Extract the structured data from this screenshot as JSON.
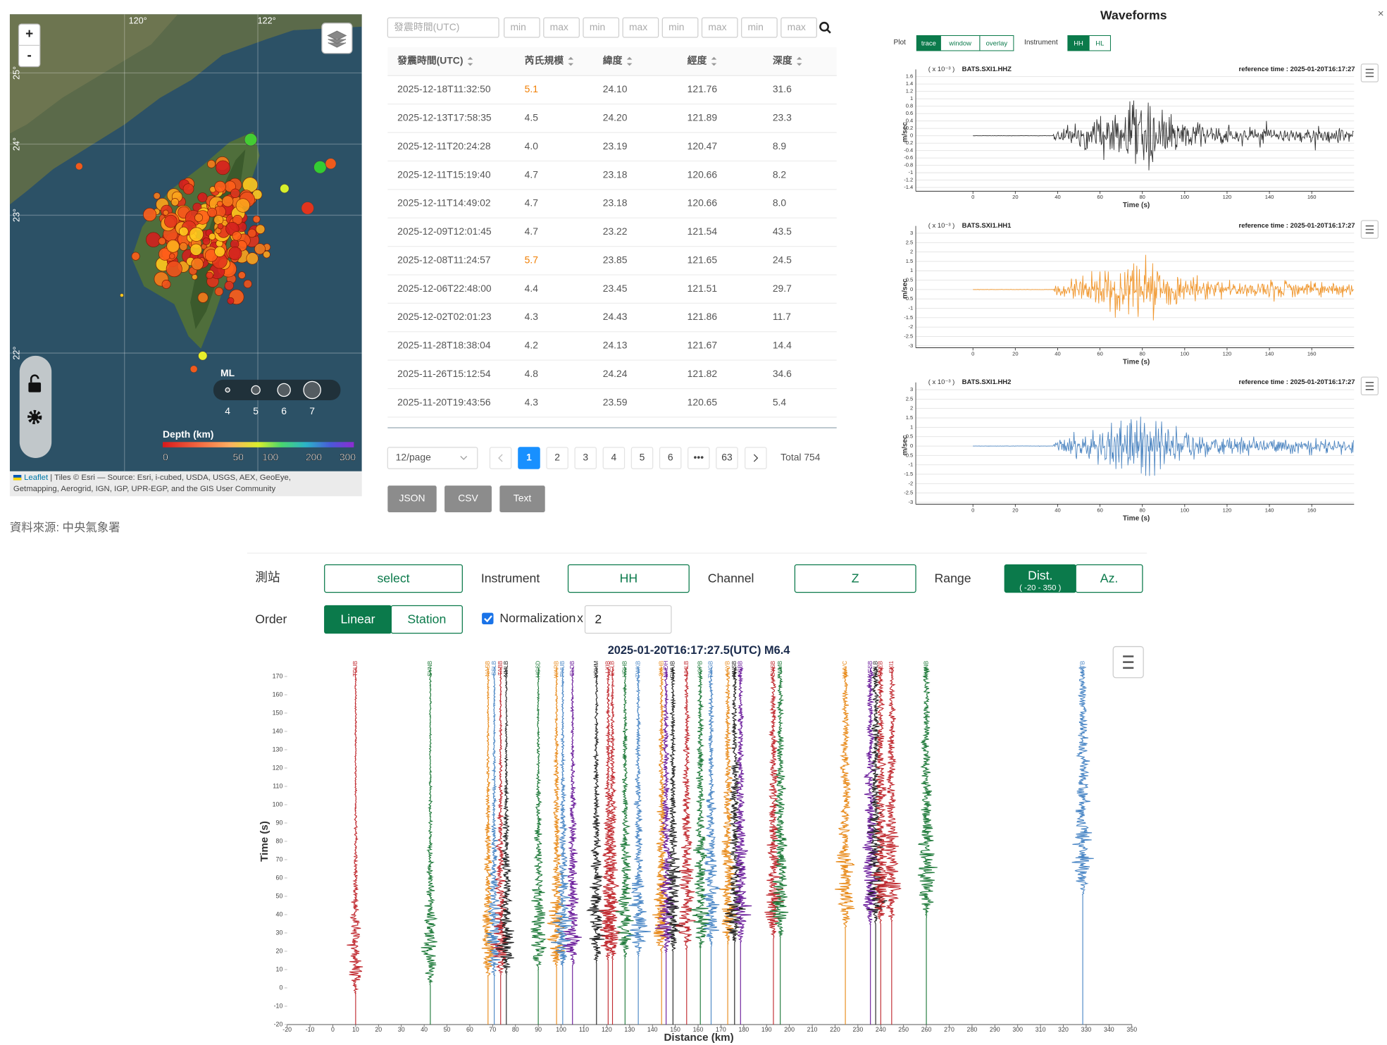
{
  "map": {
    "zoom_in": "+",
    "zoom_out": "-",
    "lon_labels": [
      "120°",
      "122°"
    ],
    "lat_labels": [
      "25°",
      "24°",
      "23°",
      "22°"
    ],
    "ml_title": "ML",
    "ml_values": [
      4,
      5,
      6,
      7
    ],
    "depth_title": "Depth (km)",
    "depth_ticks": [
      0,
      50,
      100,
      200,
      300
    ],
    "attribution_link": "Leaflet",
    "attribution": " | Tiles © Esri — Source: Esri, i-cubed, USDA, USGS, AEX, GeoEye,",
    "attribution_2": "Getmapping, Aerogrid, IGN, IGP, UPR-EGP, and the GIS User Community"
  },
  "source": "資料來源: 中央氣象署",
  "search": {
    "time_placeholder": "發震時間(UTC)",
    "range_placeholders": [
      "min",
      "max",
      "min",
      "max",
      "min",
      "max",
      "min",
      "max"
    ]
  },
  "table": {
    "columns": [
      "發震時間(UTC)",
      "芮氏規模",
      "緯度",
      "經度",
      "深度"
    ],
    "highlight_color": "#f07d00",
    "rows": [
      [
        "2025-12-18T11:32:50",
        "5.1",
        "24.10",
        "121.76",
        "31.6"
      ],
      [
        "2025-12-13T17:58:35",
        "4.5",
        "24.20",
        "121.89",
        "23.3"
      ],
      [
        "2025-12-11T20:24:28",
        "4.0",
        "23.19",
        "120.47",
        "8.9"
      ],
      [
        "2025-12-11T15:19:40",
        "4.7",
        "23.18",
        "120.66",
        "8.2"
      ],
      [
        "2025-12-11T14:49:02",
        "4.7",
        "23.18",
        "120.66",
        "8.0"
      ],
      [
        "2025-12-09T12:01:45",
        "4.7",
        "23.22",
        "121.54",
        "43.5"
      ],
      [
        "2025-12-08T11:24:57",
        "5.7",
        "23.85",
        "121.65",
        "24.5"
      ],
      [
        "2025-12-06T22:48:00",
        "4.4",
        "23.45",
        "121.51",
        "29.7"
      ],
      [
        "2025-12-02T02:01:23",
        "4.3",
        "24.43",
        "121.86",
        "11.7"
      ],
      [
        "2025-11-28T18:38:04",
        "4.2",
        "24.13",
        "121.67",
        "14.4"
      ],
      [
        "2025-11-26T15:12:54",
        "4.8",
        "24.24",
        "121.82",
        "34.6"
      ],
      [
        "2025-11-20T19:43:56",
        "4.3",
        "23.59",
        "120.65",
        "5.4"
      ]
    ]
  },
  "pagination": {
    "page_size": "12/page",
    "pages": [
      "1",
      "2",
      "3",
      "4",
      "5",
      "6",
      "•••",
      "63"
    ],
    "active": "1",
    "total": "Total 754"
  },
  "exports": [
    "JSON",
    "CSV",
    "Text"
  ],
  "waveforms": {
    "title": "Waveforms",
    "close": "×",
    "plot_label": "Plot",
    "plot_options": [
      "trace",
      "window",
      "overlay"
    ],
    "plot_active": "trace",
    "instrument_label": "Instrument",
    "instrument_options": [
      "HH",
      "HL"
    ],
    "instrument_active": "HH",
    "scale_label": "( x 10⁻³ )",
    "reference": "reference time : 2025-01-20T16:17:27",
    "ylabel": "m/sec",
    "xlabel": "Time (s)",
    "xlim": [
      -27,
      180
    ],
    "xticks": [
      0,
      20,
      40,
      60,
      80,
      100,
      120,
      140,
      160
    ],
    "panels": [
      {
        "name": "BATS.SXI1.HHZ",
        "color": "#333333",
        "ylim": [
          -1.5,
          1.7
        ],
        "yticks": [
          1.6,
          1.4,
          1.2,
          1,
          0.8,
          0.6,
          0.4,
          0.2,
          0,
          -0.2,
          -0.4,
          -0.6,
          -0.8,
          -1,
          -1.2,
          -1.4
        ]
      },
      {
        "name": "BATS.SXI1.HH1",
        "color": "#f0952a",
        "ylim": [
          -3.1,
          3.2
        ],
        "yticks": [
          3,
          2.5,
          2,
          1.5,
          1,
          0.5,
          0,
          -0.5,
          -1,
          -1.5,
          -2,
          -2.5,
          -3
        ]
      },
      {
        "name": "BATS.SXI1.HH2",
        "color": "#4f87c2",
        "ylim": [
          -3.1,
          3.2
        ],
        "yticks": [
          3,
          2.5,
          2,
          1.5,
          1,
          0.5,
          0,
          -0.5,
          -1,
          -1.5,
          -2,
          -2.5,
          -3
        ]
      }
    ]
  },
  "record_section": {
    "controls": {
      "station_label": "測站",
      "station_value": "select",
      "instrument_label": "Instrument",
      "instrument_value": "HH",
      "channel_label": "Channel",
      "channel_value": "Z",
      "range_label": "Range",
      "range_options": [
        "Dist.",
        "Az."
      ],
      "range_sub": "( -20 - 350 )",
      "order_label": "Order",
      "order_options": [
        "Linear",
        "Station"
      ],
      "normalization_label": "Normalization",
      "normalization_x": "x",
      "normalization_value": "2"
    },
    "chart_data": {
      "type": "record_section",
      "title": "2025-01-20T16:17:27.5(UTC) M6.4",
      "ylabel": "Time (s)",
      "xlabel": "Distance (km)",
      "xlim": [
        -20,
        350
      ],
      "ylim": [
        -20,
        180
      ],
      "xticks": [
        -20,
        -10,
        0,
        10,
        20,
        30,
        40,
        50,
        60,
        70,
        80,
        90,
        100,
        110,
        120,
        130,
        140,
        150,
        160,
        170,
        180,
        190,
        200,
        210,
        220,
        230,
        240,
        250,
        260,
        270,
        280,
        290,
        300,
        310,
        320,
        330,
        340,
        350
      ],
      "yticks": [
        -20,
        -10,
        0,
        10,
        20,
        30,
        40,
        50,
        60,
        70,
        80,
        90,
        100,
        110,
        120,
        130,
        140,
        150,
        160,
        170
      ],
      "stations": [
        {
          "name": "TDUB",
          "distance": 10,
          "color": "#c0282e"
        },
        {
          "name": "SYNB",
          "distance": 42.7,
          "color": "#1f7a3a"
        },
        {
          "name": "NASB",
          "distance": 68,
          "color": "#e88a1a"
        },
        {
          "name": "SSLB",
          "distance": 70.7,
          "color": "#4a86c5"
        },
        {
          "name": "TABB",
          "distance": 73.5,
          "color": "#c0282e"
        },
        {
          "name": "NMLB",
          "distance": 76,
          "color": "#222222"
        },
        {
          "name": "HGSD",
          "distance": 90,
          "color": "#1f7a3a"
        },
        {
          "name": "WARB",
          "distance": 98,
          "color": "#e88a1a"
        },
        {
          "name": "PHUB",
          "distance": 100.7,
          "color": "#4a86c5"
        },
        {
          "name": "ELDB",
          "distance": 105,
          "color": "#6a1b9a"
        },
        {
          "name": "YOHM",
          "distance": 115.5,
          "color": "#222222"
        },
        {
          "name": "LXIB",
          "distance": 120.6,
          "color": "#c0282e"
        },
        {
          "name": "ECLB",
          "distance": 122.5,
          "color": "#c0282e"
        },
        {
          "name": "HRHB",
          "distance": 128,
          "color": "#1f7a3a"
        },
        {
          "name": "TWKB",
          "distance": 133.8,
          "color": "#4a86c5"
        },
        {
          "name": "SXHB",
          "distance": 144,
          "color": "#e88a1a"
        },
        {
          "name": "NHDH",
          "distance": 146,
          "color": "#6a1b9a"
        },
        {
          "name": "GWUB",
          "distance": 149,
          "color": "#222222"
        },
        {
          "name": "NHLB",
          "distance": 155,
          "color": "#c0282e"
        },
        {
          "name": "HGPB",
          "distance": 161,
          "color": "#1f7a3a"
        },
        {
          "name": "TWGB",
          "distance": 165.7,
          "color": "#4a86c5"
        },
        {
          "name": "LAYB",
          "distance": 173,
          "color": "#e88a1a"
        },
        {
          "name": "NNSB",
          "distance": 176,
          "color": "#222222"
        },
        {
          "name": "NSBB",
          "distance": 178.6,
          "color": "#6a1b9a"
        },
        {
          "name": "DYSB",
          "distance": 193,
          "color": "#c0282e"
        },
        {
          "name": "TWMB",
          "distance": 196,
          "color": "#1f7a3a"
        },
        {
          "name": "WHVC",
          "distance": 224.5,
          "color": "#e88a1a"
        },
        {
          "name": "WFSB",
          "distance": 235.5,
          "color": "#6a1b9a"
        },
        {
          "name": "NWLB",
          "distance": 237.8,
          "color": "#222222"
        },
        {
          "name": "SCZB",
          "distance": 240,
          "color": "#c0282e"
        },
        {
          "name": "SXI1",
          "distance": 244.8,
          "color": "#c0282e"
        },
        {
          "name": "KMNB",
          "distance": 260,
          "color": "#1f7a3a"
        },
        {
          "name": "MATB",
          "distance": 328.5,
          "color": "#4a86c5"
        }
      ]
    }
  }
}
